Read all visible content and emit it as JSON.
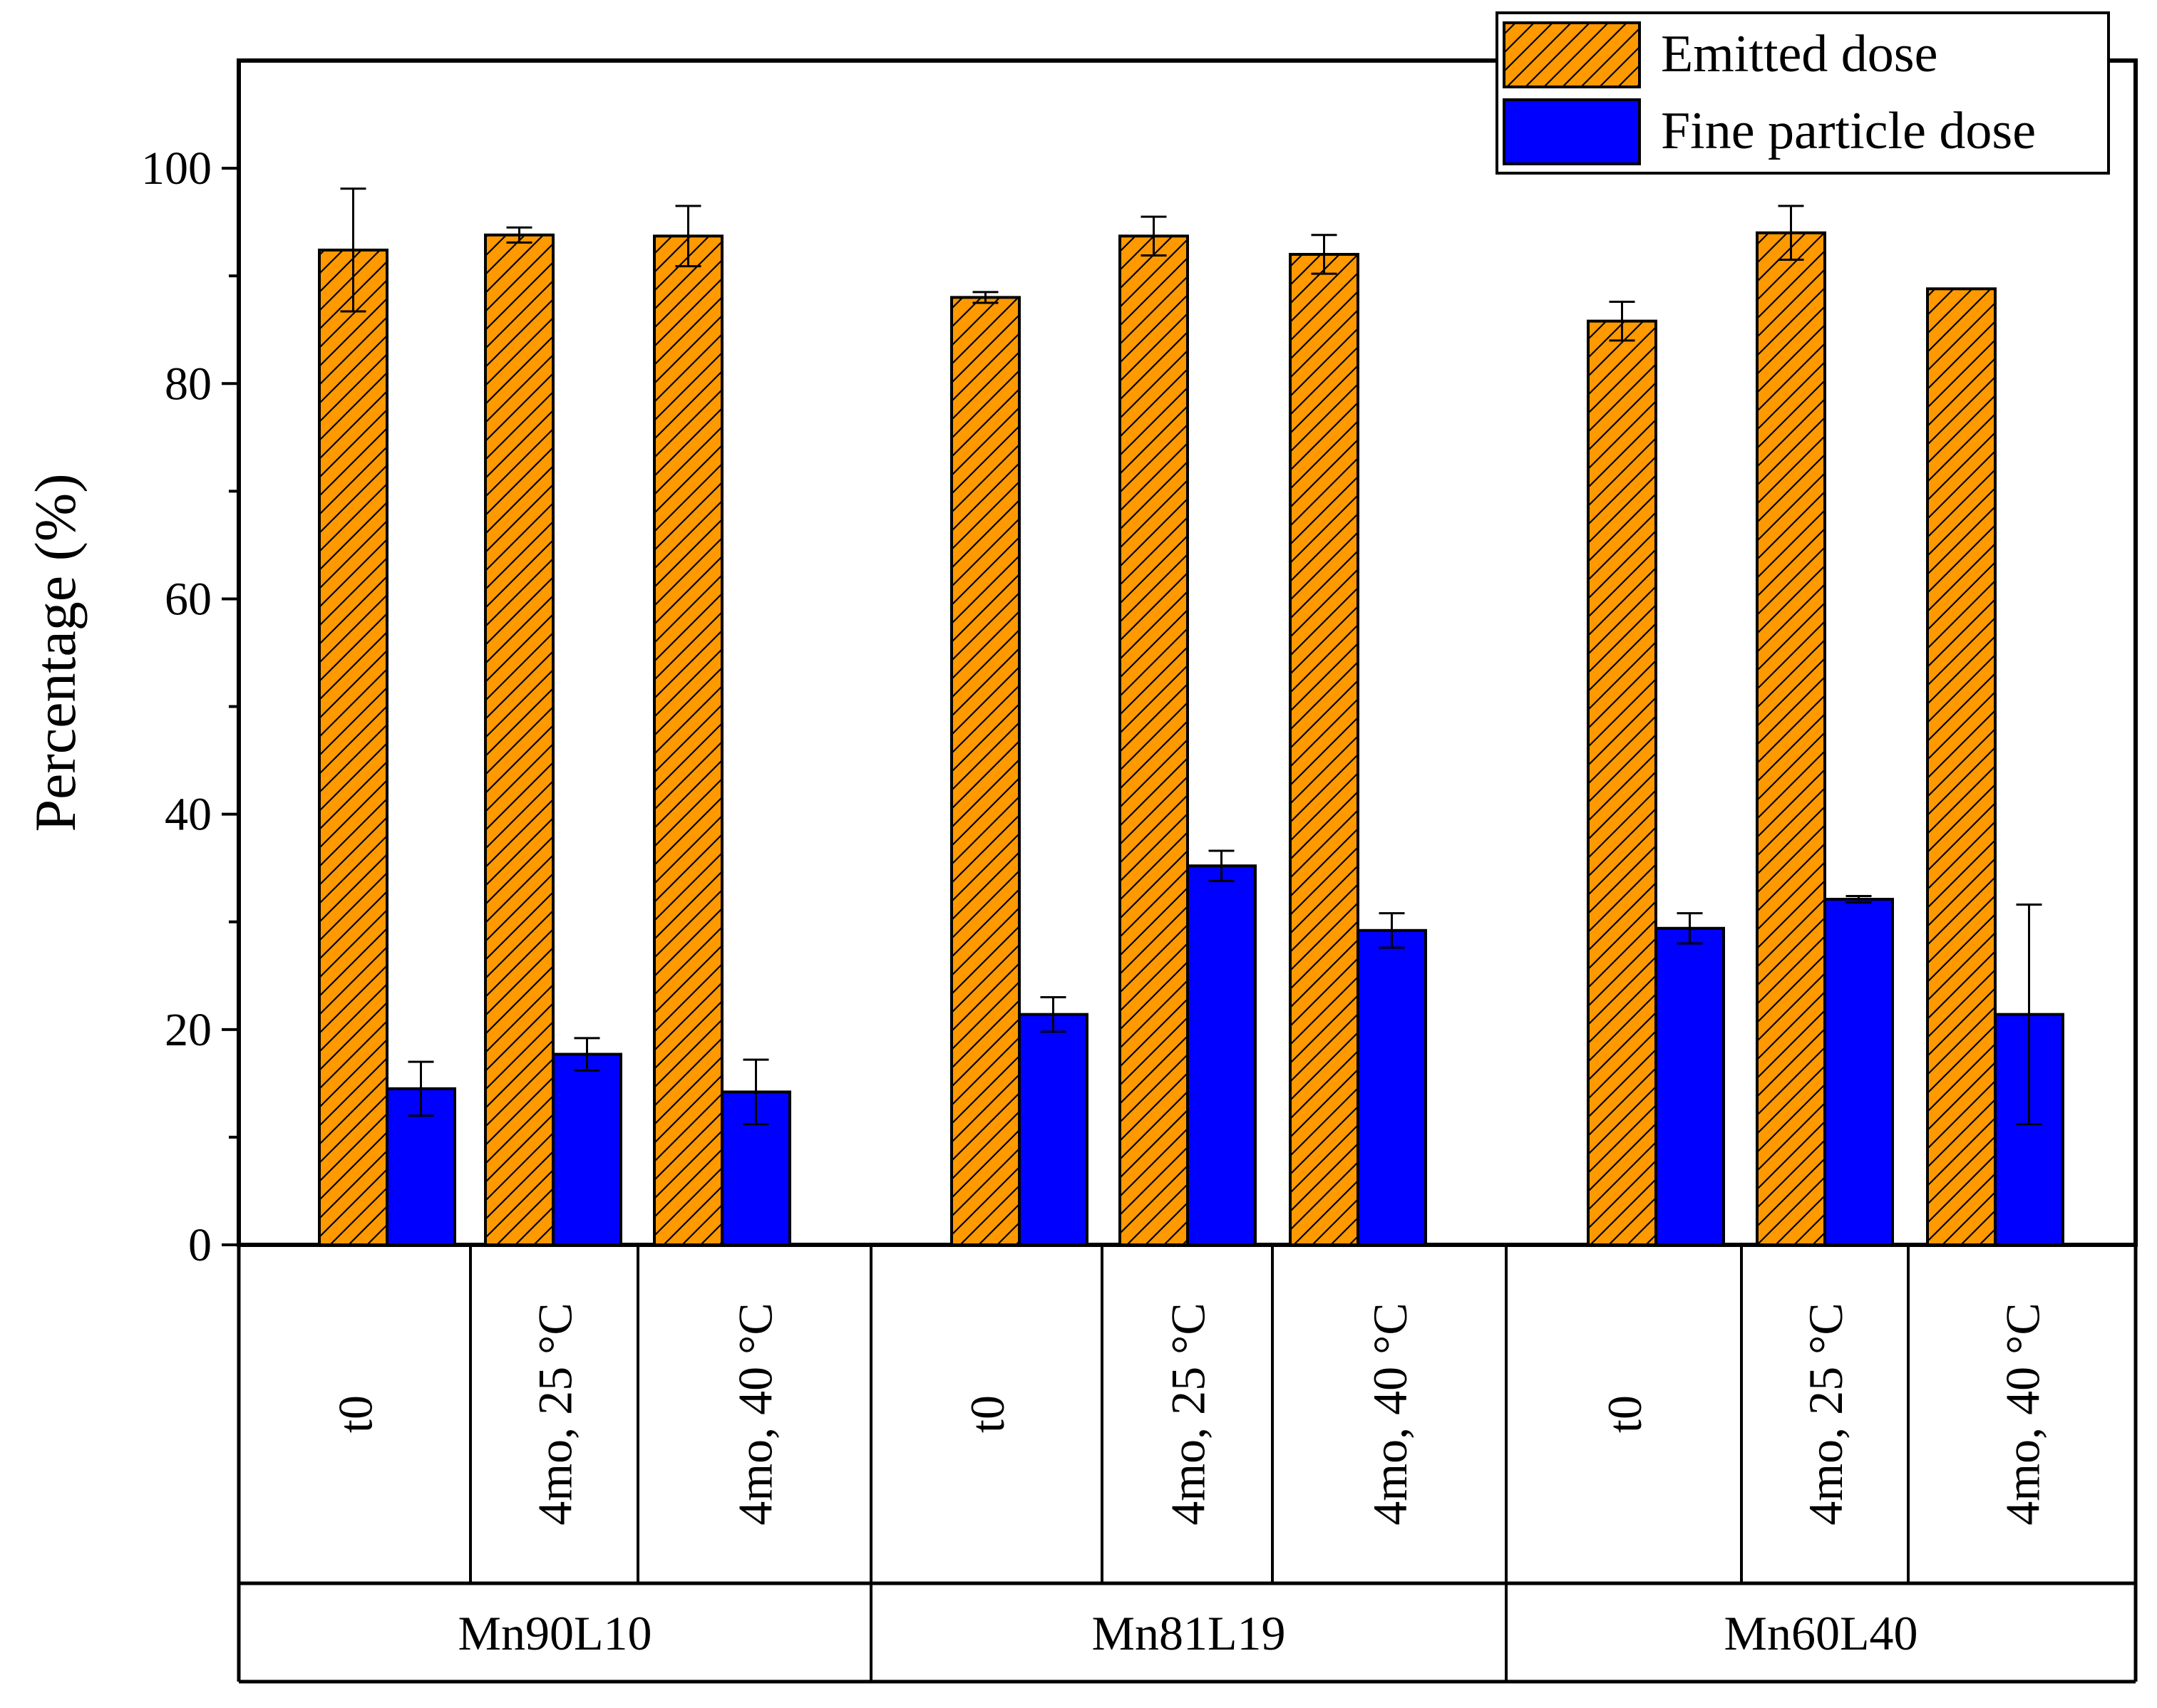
{
  "chart_data": {
    "type": "bar",
    "title": "",
    "xlabel": "",
    "ylabel": "Percentage (%)",
    "ylim": [
      0,
      110
    ],
    "yticks": [
      0,
      20,
      40,
      60,
      80,
      100
    ],
    "grid": false,
    "legend_position": "top-right",
    "categories": [
      "t0",
      "4mo, 25 °C",
      "4mo, 40 °C",
      "t0",
      "4mo, 25 °C",
      "4mo, 40 °C",
      "t0",
      "4mo, 25 °C",
      "4mo, 40 °C"
    ],
    "groups": [
      {
        "label": "Mn90L10",
        "members": [
          0,
          1,
          2
        ]
      },
      {
        "label": "Mn81L19",
        "members": [
          3,
          4,
          5
        ]
      },
      {
        "label": "Mn60L40",
        "members": [
          6,
          7,
          8
        ]
      }
    ],
    "series": [
      {
        "name": "Emitted dose",
        "color": "#FF9900",
        "pattern": "diagonal-hatch",
        "values": [
          92.4,
          93.8,
          93.7,
          88.0,
          93.7,
          92.0,
          85.8,
          94.0,
          88.8
        ],
        "errors": [
          5.7,
          0.7,
          2.8,
          0.5,
          1.8,
          1.8,
          1.8,
          2.5,
          0
        ]
      },
      {
        "name": "Fine particle dose",
        "color": "#0000FF",
        "pattern": "solid",
        "values": [
          14.5,
          17.7,
          14.2,
          21.4,
          35.2,
          29.2,
          29.4,
          32.1,
          21.4
        ],
        "errors": [
          2.5,
          1.5,
          3.0,
          1.6,
          1.4,
          1.6,
          1.4,
          0.3,
          10.2
        ]
      }
    ]
  }
}
